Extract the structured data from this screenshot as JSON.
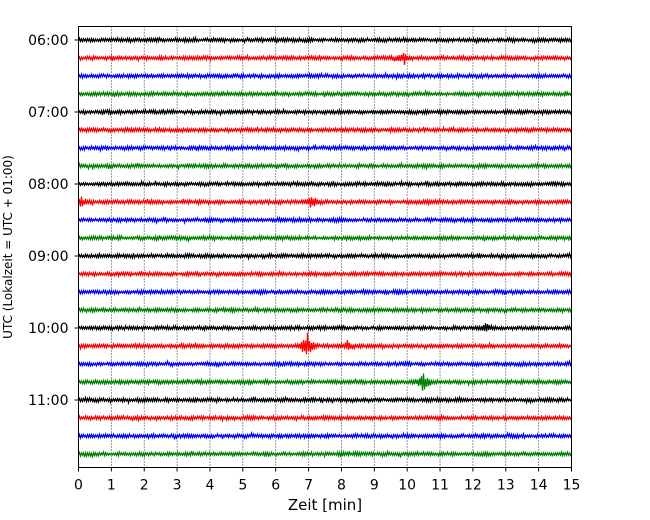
{
  "chart_data": {
    "type": "line",
    "xlabel": "Zeit  [min]",
    "ylabel": "UTC (Lokalzeit = UTC + 01:00)",
    "xlim": [
      0,
      15
    ],
    "x_ticks": [
      0,
      1,
      2,
      3,
      4,
      5,
      6,
      7,
      8,
      9,
      10,
      11,
      12,
      13,
      14,
      15
    ],
    "y_tick_labels": [
      "06:00",
      "07:00",
      "08:00",
      "09:00",
      "10:00",
      "11:00"
    ],
    "grid": "vertical dotted lines at each minute",
    "trace_start_time": "06:00",
    "trace_interval_minutes": 15,
    "trace_colors": [
      "#000000",
      "#ff0000",
      "#0000ff",
      "#008000"
    ],
    "traces": [
      {
        "start": "06:00",
        "events": []
      },
      {
        "start": "06:15",
        "events": [
          {
            "minute": 9.9,
            "amplitude": 0.9
          }
        ]
      },
      {
        "start": "06:30",
        "events": []
      },
      {
        "start": "06:45",
        "events": []
      },
      {
        "start": "07:00",
        "events": []
      },
      {
        "start": "07:15",
        "events": []
      },
      {
        "start": "07:30",
        "events": []
      },
      {
        "start": "07:45",
        "events": []
      },
      {
        "start": "08:00",
        "events": []
      },
      {
        "start": "08:15",
        "events": [
          {
            "minute": 7.1,
            "amplitude": 1.0
          },
          {
            "minute": 0.1,
            "amplitude": 0.6
          }
        ]
      },
      {
        "start": "08:30",
        "events": []
      },
      {
        "start": "08:45",
        "events": []
      },
      {
        "start": "09:00",
        "events": []
      },
      {
        "start": "09:15",
        "events": []
      },
      {
        "start": "09:30",
        "events": []
      },
      {
        "start": "09:45",
        "events": []
      },
      {
        "start": "10:00",
        "events": [
          {
            "minute": 12.4,
            "amplitude": 0.5
          }
        ]
      },
      {
        "start": "10:15",
        "events": [
          {
            "minute": 6.95,
            "amplitude": 2.0
          },
          {
            "minute": 8.2,
            "amplitude": 0.7
          }
        ]
      },
      {
        "start": "10:30",
        "events": []
      },
      {
        "start": "10:45",
        "events": [
          {
            "minute": 10.5,
            "amplitude": 1.3
          }
        ]
      },
      {
        "start": "11:00",
        "events": []
      },
      {
        "start": "11:15",
        "events": []
      },
      {
        "start": "11:30",
        "events": []
      },
      {
        "start": "11:45",
        "events": []
      }
    ]
  }
}
